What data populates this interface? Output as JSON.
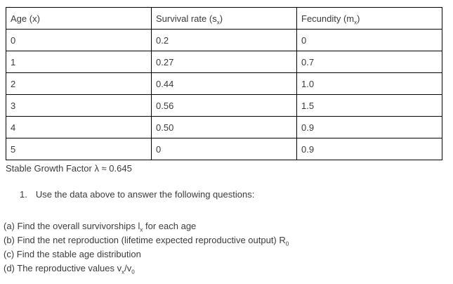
{
  "page": {
    "background": "#ffffff",
    "text_color": "#3b3b3b",
    "table_border_color": "#000000"
  },
  "table": {
    "headers": [
      {
        "name": "age",
        "parts": [
          {
            "t": "Age (x)"
          }
        ]
      },
      {
        "name": "survival-rate",
        "parts": [
          {
            "t": "Survival rate (s"
          },
          {
            "t": "x",
            "sub": true
          },
          {
            "t": ")"
          }
        ]
      },
      {
        "name": "fecundity",
        "parts": [
          {
            "t": "Fecundity (m"
          },
          {
            "t": "x",
            "sub": true
          },
          {
            "t": ")"
          }
        ]
      }
    ],
    "rows": [
      {
        "age": "0",
        "survival_rate": "0.2",
        "fecundity": "0"
      },
      {
        "age": "1",
        "survival_rate": "0.27",
        "fecundity": "0.7"
      },
      {
        "age": "2",
        "survival_rate": "0.44",
        "fecundity": "1.0"
      },
      {
        "age": "3",
        "survival_rate": "0.56",
        "fecundity": "1.5"
      },
      {
        "age": "4",
        "survival_rate": "0.50",
        "fecundity": "0.9"
      },
      {
        "age": "5",
        "survival_rate": "0",
        "fecundity": "0.9"
      }
    ]
  },
  "caption": {
    "parts": [
      {
        "t": "Stable Growth Factor λ ≈ 0.645"
      }
    ]
  },
  "question": {
    "number": "1.",
    "text": "Use the data above to answer the following questions:"
  },
  "subquestions": [
    {
      "parts": [
        {
          "t": "(a) Find the overall survivorships l"
        },
        {
          "t": "x",
          "sub": true
        },
        {
          "t": " for each age"
        }
      ]
    },
    {
      "parts": [
        {
          "t": "(b) Find the net reproduction (lifetime expected reproductive output) R"
        },
        {
          "t": "0",
          "sub": true
        }
      ]
    },
    {
      "parts": [
        {
          "t": "(c) Find the stable age distribution"
        }
      ]
    },
    {
      "parts": [
        {
          "t": "(d) The reproductive values v"
        },
        {
          "t": "x",
          "sub": true
        },
        {
          "t": "/v"
        },
        {
          "t": "0",
          "sub": true
        }
      ]
    }
  ]
}
